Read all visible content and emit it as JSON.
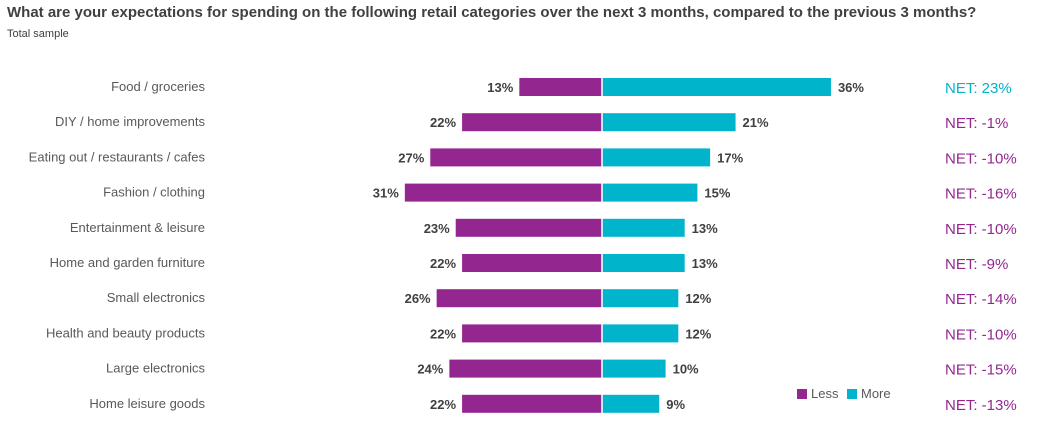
{
  "title": "What are your expectations for spending on the following retail categories over the next 3 months, compared to the previous 3 months?",
  "subtitle": "Total sample",
  "colors": {
    "less": "#93278f",
    "more": "#00b4cc",
    "net_positive": "#00b4cc",
    "net_negative": "#93278f",
    "label": "#595959",
    "value": "#404040"
  },
  "chart_data": {
    "type": "bar",
    "orientation": "horizontal-diverging",
    "categories": [
      "Food / groceries",
      "DIY / home improvements",
      "Eating out / restaurants / cafes",
      "Fashion / clothing",
      "Entertainment & leisure",
      "Home and garden furniture",
      "Small electronics",
      "Health and beauty products",
      "Large electronics",
      "Home leisure goods"
    ],
    "series": [
      {
        "name": "Less",
        "values": [
          13,
          22,
          27,
          31,
          23,
          22,
          26,
          22,
          24,
          22
        ],
        "labels": [
          "13%",
          "22%",
          "27%",
          "31%",
          "23%",
          "22%",
          "26%",
          "22%",
          "24%",
          "22%"
        ]
      },
      {
        "name": "More",
        "values": [
          36,
          21,
          17,
          15,
          13,
          13,
          12,
          12,
          10,
          9
        ],
        "labels": [
          "36%",
          "21%",
          "17%",
          "15%",
          "13%",
          "13%",
          "12%",
          "12%",
          "10%",
          "9%"
        ]
      }
    ],
    "net": [
      "NET: 23%",
      "NET: -1%",
      "NET: -10%",
      "NET: -16%",
      "NET: -10%",
      "NET: -9%",
      "NET: -14%",
      "NET: -10%",
      "NET: -15%",
      "NET: -13%"
    ],
    "legend": [
      "Less",
      "More"
    ],
    "legend_position": "bottom-right"
  }
}
